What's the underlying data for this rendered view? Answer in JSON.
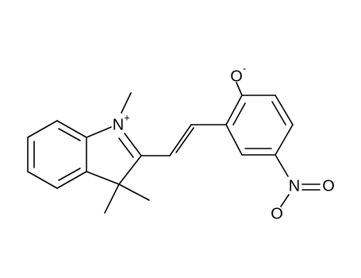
{
  "atoms": [
    {
      "symbol": "N",
      "charge": "+"
    },
    {
      "symbol": "O",
      "charge": "-"
    },
    {
      "symbol": "N"
    },
    {
      "symbol": "O"
    },
    {
      "symbol": "O"
    }
  ]
}
